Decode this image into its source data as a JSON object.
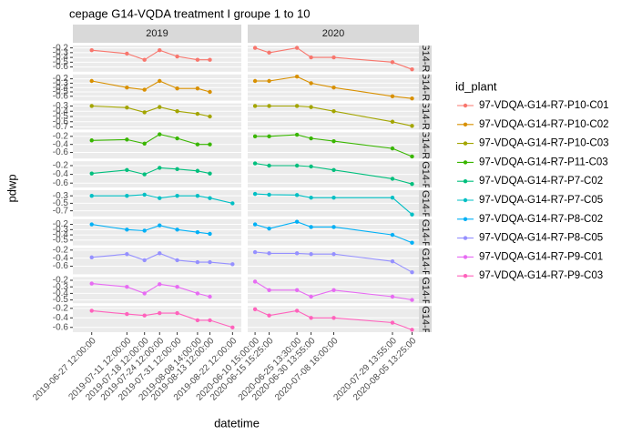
{
  "chart_data": {
    "type": "line",
    "title": "cepage G14-VQDA treatment I groupe 1 to 10",
    "x_label": "datetime",
    "y_label": "pdwp",
    "legend_title": "id_plant",
    "columns": [
      {
        "label": "2019",
        "xlim": [
          "2019-06-20 00:00:00",
          "2019-08-26 00:00:00"
        ],
        "x": [
          "2019-06-27 12:00:00",
          "2019-07-11 12:00:00",
          "2019-07-18 12:00:00",
          "2019-07-24 12:00:00",
          "2019-07-31 12:00:00",
          "2019-08-08 14:00:00",
          "2019-08-13 12:00:00",
          "2019-08-22 12:00:00"
        ]
      },
      {
        "label": "2020",
        "xlim": [
          "2020-06-08 00:00:00",
          "2020-08-08 00:00:00"
        ],
        "x": [
          "2020-06-10 15:00:00",
          "2020-06-15 15:25:00",
          "2020-06-25 13:30:00",
          "2020-06-30 13:55:00",
          "2020-07-08 16:00:00",
          "2020-07-29 13:55:00",
          "2020-08-05 13:25:00"
        ]
      }
    ],
    "series": [
      {
        "name": "97-VDQA-G14-R7-P10-C01",
        "color": "#F8766D",
        "ylim": [
          -0.7,
          -0.15
        ],
        "yticks": [
          -0.2,
          -0.3,
          -0.4,
          -0.5,
          -0.6
        ],
        "values": [
          [
            -0.25,
            -0.32,
            -0.45,
            -0.25,
            -0.38,
            -0.45,
            -0.45,
            null
          ],
          [
            -0.2,
            -0.3,
            -0.2,
            -0.4,
            -0.4,
            -0.5,
            -0.65
          ]
        ]
      },
      {
        "name": "97-VDQA-G14-R7-P10-C02",
        "color": "#D89000",
        "ylim": [
          -0.7,
          -0.1
        ],
        "yticks": [
          -0.2,
          -0.3,
          -0.4,
          -0.5,
          -0.6
        ],
        "values": [
          [
            -0.25,
            -0.4,
            -0.45,
            -0.25,
            -0.42,
            -0.42,
            -0.5,
            null
          ],
          [
            -0.25,
            -0.25,
            -0.15,
            -0.3,
            -0.4,
            -0.6,
            -0.65
          ]
        ]
      },
      {
        "name": "97-VDQA-G14-R7-P10-C03",
        "color": "#A3A500",
        "ylim": [
          -0.75,
          -0.25
        ],
        "yticks": [
          -0.3,
          -0.4,
          -0.5,
          -0.6,
          -0.7
        ],
        "values": [
          [
            -0.3,
            -0.33,
            -0.42,
            -0.32,
            -0.4,
            -0.45,
            -0.5,
            null
          ],
          [
            -0.3,
            -0.3,
            -0.3,
            -0.32,
            -0.4,
            -0.6,
            -0.68
          ]
        ]
      },
      {
        "name": "97-VDQA-G14-R7-P11-C03",
        "color": "#39B600",
        "ylim": [
          -0.75,
          -0.1
        ],
        "yticks": [
          -0.2,
          -0.4,
          -0.6
        ],
        "values": [
          [
            -0.3,
            -0.28,
            -0.38,
            -0.15,
            -0.25,
            -0.4,
            -0.4,
            null
          ],
          [
            -0.2,
            -0.2,
            -0.16,
            -0.25,
            -0.32,
            -0.5,
            -0.7
          ]
        ]
      },
      {
        "name": "97-VDQA-G14-R7-P7-C02",
        "color": "#00BF7D",
        "ylim": [
          -0.7,
          -0.1
        ],
        "yticks": [
          -0.2,
          -0.4,
          -0.6
        ],
        "values": [
          [
            -0.38,
            -0.3,
            -0.4,
            -0.25,
            -0.28,
            -0.32,
            -0.38,
            null
          ],
          [
            -0.15,
            -0.2,
            -0.2,
            -0.22,
            -0.3,
            -0.5,
            -0.62
          ]
        ]
      },
      {
        "name": "97-VDQA-G14-R7-P7-C05",
        "color": "#00BFC4",
        "ylim": [
          -0.85,
          -0.15
        ],
        "yticks": [
          -0.3,
          -0.5,
          -0.7
        ],
        "values": [
          [
            -0.3,
            -0.3,
            -0.27,
            -0.36,
            -0.3,
            -0.3,
            -0.36,
            -0.5
          ],
          [
            -0.25,
            -0.27,
            -0.28,
            -0.35,
            -0.35,
            -0.35,
            -0.8
          ]
        ]
      },
      {
        "name": "97-VDQA-G14-R7-P8-C02",
        "color": "#00B0F6",
        "ylim": [
          -0.6,
          -0.1
        ],
        "yticks": [
          -0.2,
          -0.3,
          -0.4,
          -0.5
        ],
        "values": [
          [
            -0.2,
            -0.3,
            -0.32,
            -0.22,
            -0.3,
            -0.35,
            -0.38,
            null
          ],
          [
            -0.2,
            -0.28,
            -0.15,
            -0.25,
            -0.25,
            -0.4,
            -0.55
          ]
        ]
      },
      {
        "name": "97-VDQA-G14-R7-P8-C05",
        "color": "#9590FF",
        "ylim": [
          -0.8,
          -0.15
        ],
        "yticks": [
          -0.2,
          -0.4,
          -0.6
        ],
        "values": [
          [
            -0.38,
            -0.3,
            -0.45,
            -0.28,
            -0.45,
            -0.5,
            -0.5,
            -0.55
          ],
          [
            -0.25,
            -0.28,
            -0.28,
            -0.3,
            -0.3,
            -0.48,
            -0.75
          ]
        ]
      },
      {
        "name": "97-VDQA-G14-R7-P9-C01",
        "color": "#E76BF3",
        "ylim": [
          -0.55,
          -0.15
        ],
        "yticks": [
          -0.2,
          -0.3,
          -0.4,
          -0.5
        ],
        "values": [
          [
            -0.25,
            -0.3,
            -0.4,
            -0.26,
            -0.3,
            -0.4,
            -0.45,
            null
          ],
          [
            -0.22,
            -0.35,
            -0.35,
            -0.45,
            -0.35,
            -0.45,
            -0.5
          ]
        ]
      },
      {
        "name": "97-VDQA-G14-R7-P9-C03",
        "color": "#FF62BC",
        "ylim": [
          -0.7,
          -0.15
        ],
        "yticks": [
          -0.2,
          -0.4,
          -0.6
        ],
        "values": [
          [
            -0.25,
            -0.32,
            -0.35,
            -0.3,
            -0.3,
            -0.45,
            -0.45,
            -0.6
          ],
          [
            -0.22,
            -0.35,
            -0.25,
            -0.4,
            -0.4,
            -0.5,
            -0.65
          ]
        ]
      }
    ]
  }
}
